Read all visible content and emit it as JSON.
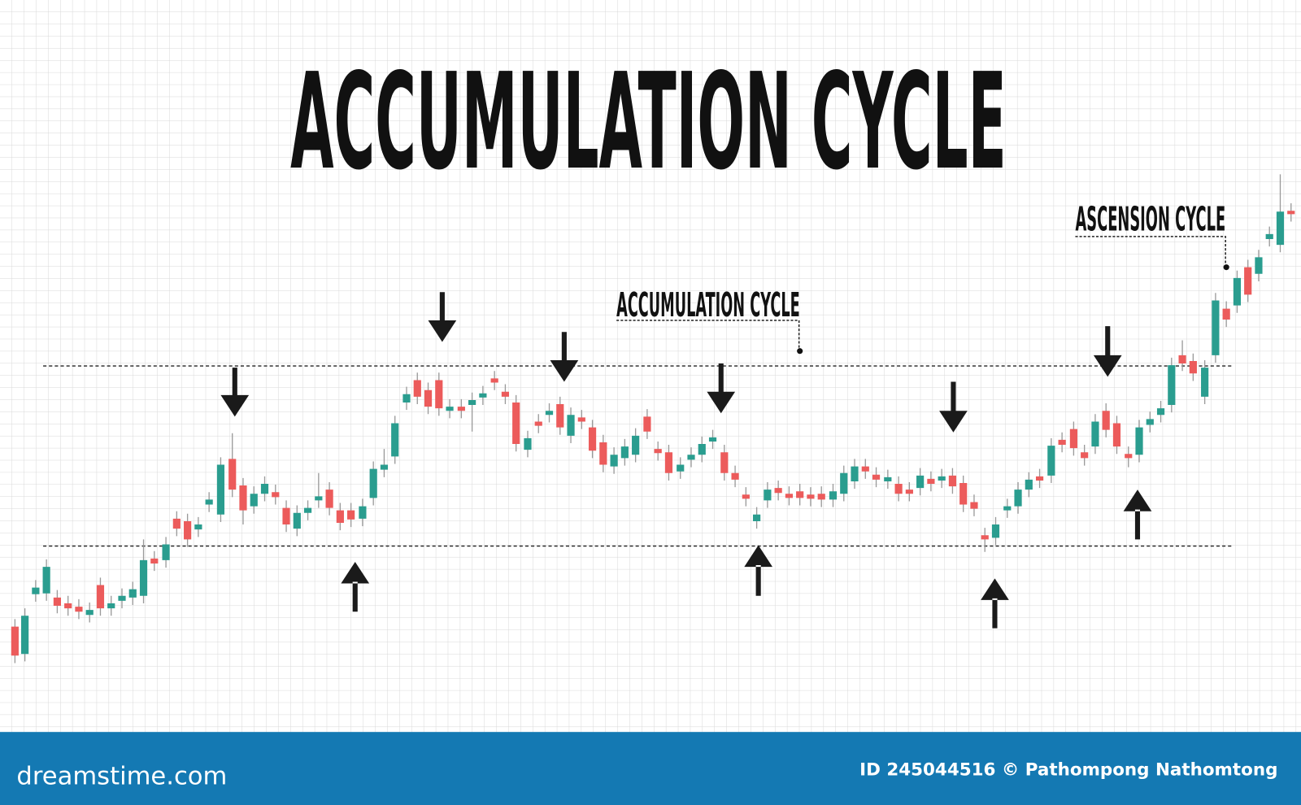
{
  "title": "ACCUMULATION CYCLE",
  "annotations": [
    {
      "label": "ACCUMULATION CYCLE"
    },
    {
      "label": "ASCENSION CYCLE"
    }
  ],
  "footer": {
    "brand": "dreamstime.com",
    "credit": "ID 245044516 © Pathompong Nathomtong"
  }
}
